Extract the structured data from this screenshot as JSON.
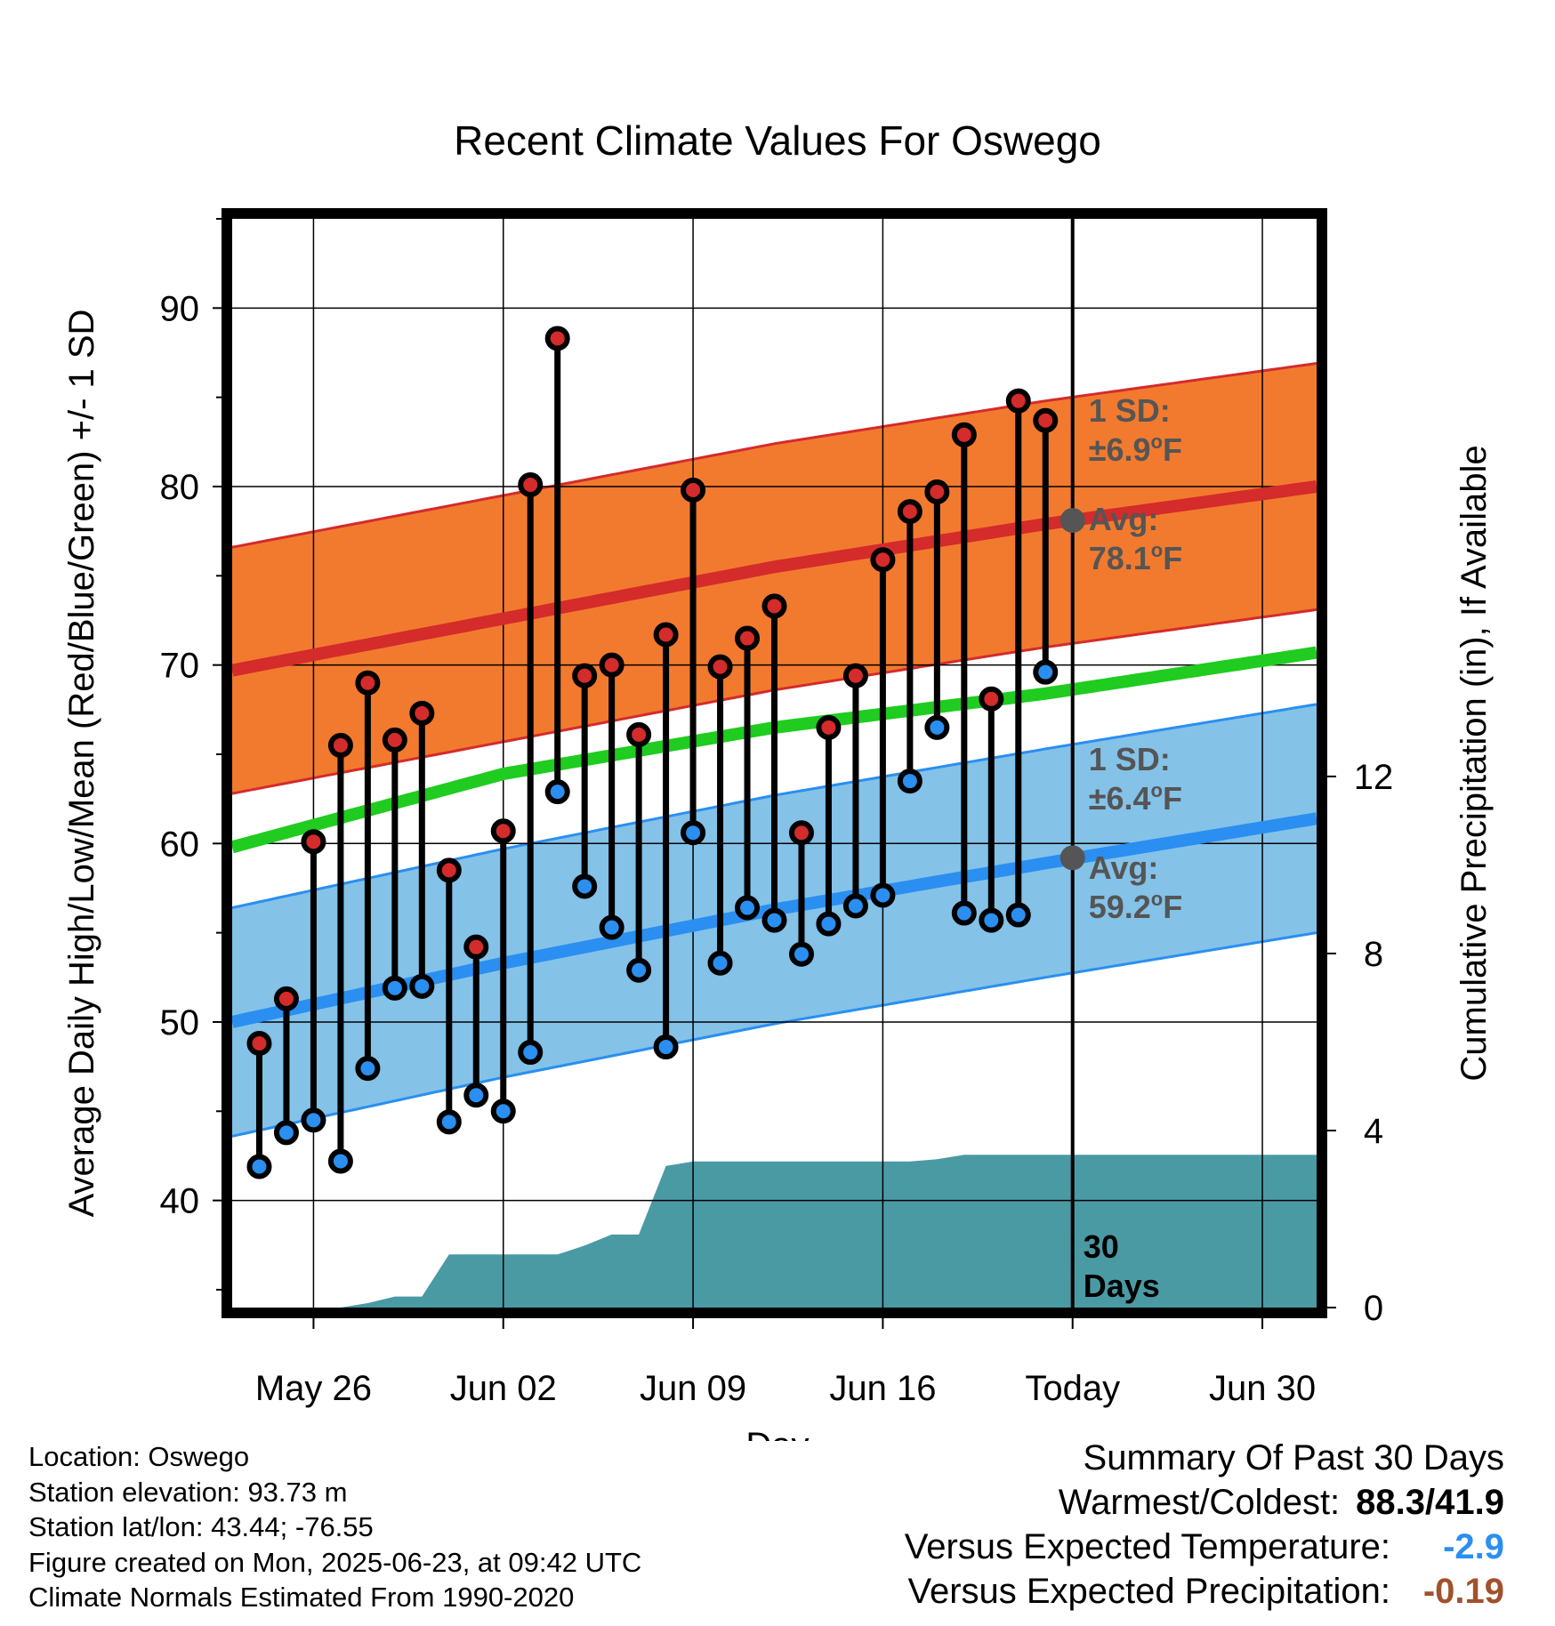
{
  "chart_data": {
    "type": "line",
    "title": "Recent Climate Values For Oswego",
    "xlabel": "Day",
    "ylabel": "Average Daily High/Low/Mean (Red/Blue/Green) +/- 1 SD",
    "y2label": "Cumulative Precipitation (in), If Available",
    "x_tick_labels": [
      "May 26",
      "Jun 02",
      "Jun 09",
      "Jun 16",
      "Today",
      "Jun 30"
    ],
    "x_tick_dates": [
      "2025-05-26",
      "2025-06-02",
      "2025-06-09",
      "2025-06-16",
      "2025-06-23",
      "2025-06-30"
    ],
    "xlim": [
      "2025-05-23",
      "2025-07-02"
    ],
    "ylim": [
      34,
      95
    ],
    "yticks": [
      40,
      50,
      60,
      70,
      80,
      90
    ],
    "y2lim": [
      0,
      24.6
    ],
    "y2ticks": [
      0,
      4,
      8,
      12
    ],
    "grid": true,
    "today": "2025-06-23",
    "today_label": "30 Days",
    "normals": {
      "dates": [
        "2025-05-23",
        "2025-06-02",
        "2025-06-12",
        "2025-06-22",
        "2025-07-02"
      ],
      "high_mean": [
        69.7,
        72.6,
        75.5,
        77.9,
        80.0
      ],
      "high_sd": 6.9,
      "low_mean": [
        50.0,
        53.3,
        56.3,
        58.9,
        61.4
      ],
      "low_sd": 6.4,
      "avg_mean": [
        59.8,
        63.9,
        66.5,
        68.4,
        70.7
      ]
    },
    "series": [
      {
        "name": "High",
        "color": "#d42b2b",
        "x": [
          "2025-05-24",
          "2025-05-25",
          "2025-05-26",
          "2025-05-27",
          "2025-05-28",
          "2025-05-29",
          "2025-05-30",
          "2025-05-31",
          "2025-06-01",
          "2025-06-02",
          "2025-06-03",
          "2025-06-04",
          "2025-06-05",
          "2025-06-06",
          "2025-06-07",
          "2025-06-08",
          "2025-06-09",
          "2025-06-10",
          "2025-06-11",
          "2025-06-12",
          "2025-06-13",
          "2025-06-14",
          "2025-06-15",
          "2025-06-16",
          "2025-06-17",
          "2025-06-18",
          "2025-06-19",
          "2025-06-20",
          "2025-06-21",
          "2025-06-22"
        ],
        "values": [
          48.8,
          51.3,
          60.1,
          65.5,
          69.0,
          65.8,
          67.3,
          58.5,
          54.2,
          60.7,
          80.1,
          88.3,
          69.4,
          70.0,
          66.1,
          71.7,
          79.8,
          69.9,
          71.5,
          73.3,
          60.6,
          66.5,
          69.4,
          75.9,
          78.6,
          79.7,
          82.9,
          68.1,
          84.8,
          83.7
        ]
      },
      {
        "name": "Low",
        "color": "#2a8ff0",
        "x": [
          "2025-05-24",
          "2025-05-25",
          "2025-05-26",
          "2025-05-27",
          "2025-05-28",
          "2025-05-29",
          "2025-05-30",
          "2025-05-31",
          "2025-06-01",
          "2025-06-02",
          "2025-06-03",
          "2025-06-04",
          "2025-06-05",
          "2025-06-06",
          "2025-06-07",
          "2025-06-08",
          "2025-06-09",
          "2025-06-10",
          "2025-06-11",
          "2025-06-12",
          "2025-06-13",
          "2025-06-14",
          "2025-06-15",
          "2025-06-16",
          "2025-06-17",
          "2025-06-18",
          "2025-06-19",
          "2025-06-20",
          "2025-06-21",
          "2025-06-22"
        ],
        "values": [
          41.9,
          43.8,
          44.5,
          42.2,
          47.4,
          51.9,
          52.0,
          44.4,
          45.9,
          45.0,
          48.3,
          62.9,
          57.6,
          55.3,
          52.9,
          48.6,
          60.6,
          53.3,
          56.4,
          55.7,
          53.8,
          55.5,
          56.5,
          57.1,
          63.5,
          66.5,
          56.1,
          55.7,
          56.0,
          69.6
        ]
      }
    ],
    "precipitation": {
      "x": [
        "2025-05-23",
        "2025-05-24",
        "2025-05-25",
        "2025-05-26",
        "2025-05-27",
        "2025-05-28",
        "2025-05-29",
        "2025-05-30",
        "2025-05-31",
        "2025-06-01",
        "2025-06-02",
        "2025-06-03",
        "2025-06-04",
        "2025-06-05",
        "2025-06-06",
        "2025-06-07",
        "2025-06-08",
        "2025-06-09",
        "2025-06-10",
        "2025-06-11",
        "2025-06-12",
        "2025-06-13",
        "2025-06-14",
        "2025-06-15",
        "2025-06-16",
        "2025-06-17",
        "2025-06-18",
        "2025-06-19",
        "2025-06-20",
        "2025-06-21",
        "2025-06-22",
        "2025-07-02"
      ],
      "values": [
        0,
        0,
        0,
        0,
        0,
        0.1,
        0.25,
        0.25,
        1.2,
        1.2,
        1.2,
        1.2,
        1.2,
        1.4,
        1.65,
        1.65,
        3.2,
        3.3,
        3.3,
        3.3,
        3.3,
        3.3,
        3.3,
        3.3,
        3.3,
        3.3,
        3.35,
        3.45,
        3.45,
        3.45,
        3.45,
        3.45
      ]
    },
    "annotations": {
      "high_sd_line1": "1 SD:",
      "high_sd_line2": "±6.9°F",
      "high_avg_line1": "Avg:",
      "high_avg_line2": "78.1°F",
      "high_avg_value": 78.1,
      "low_sd_line1": "1 SD:",
      "low_sd_line2": "±6.4°F",
      "low_avg_line1": "Avg:",
      "low_avg_line2": "59.2°F",
      "low_avg_value": 59.2,
      "days_line1": "30",
      "days_line2": "Days"
    },
    "colors": {
      "high_band": "#f27a2e",
      "high_line": "#d42b2b",
      "low_band": "#84c2e8",
      "low_line": "#2a8ff0",
      "mean_line": "#1fcc1f",
      "precip": "#4a9aa4",
      "annotation": "#555555",
      "marker_today": "#555555"
    }
  },
  "info": {
    "location": "Location: Oswego",
    "elevation": "Station elevation: 93.73 m",
    "latlon": "Station lat/lon: 43.44; -76.55",
    "created": "Figure created on Mon, 2025-06-23, at 09:42 UTC",
    "normals": "Climate Normals Estimated From 1990-2020"
  },
  "summary": {
    "title": "Summary Of Past 30 Days",
    "warmest_label": "Warmest/Coldest:",
    "warmest_value": "88.3/41.9",
    "temp_label": "Versus Expected Temperature:",
    "temp_value": "-2.9",
    "temp_color": "#2a8ff0",
    "precip_label": "Versus Expected Precipitation:",
    "precip_value": "-0.19",
    "precip_color": "#a0522d"
  }
}
